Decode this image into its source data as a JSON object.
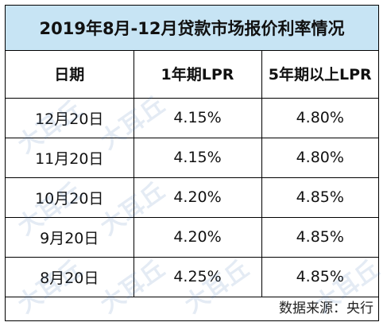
{
  "title": "2019年8月-12月贷款市场报价利率情况",
  "headers": [
    "日期",
    "1年期LPR",
    "5年期以上LPR"
  ],
  "rows": [
    {
      "date": "12月20日",
      "lpr1y": "4.15%",
      "lpr5y": "4.80%"
    },
    {
      "date": "11月20日",
      "lpr1y": "4.15%",
      "lpr5y": "4.80%"
    },
    {
      "date": "10月20日",
      "lpr1y": "4.20%",
      "lpr5y": "4.85%"
    },
    {
      "date": "9月20日",
      "lpr1y": "4.20%",
      "lpr5y": "4.85%"
    },
    {
      "date": "8月20日",
      "lpr1y": "4.25%",
      "lpr5y": "4.85%"
    }
  ],
  "source": "数据来源：央行",
  "watermark": "大耳丘",
  "colors": {
    "title_background": "#c7e4f4",
    "border": "#000000",
    "watermark": "#3a6fb0"
  }
}
